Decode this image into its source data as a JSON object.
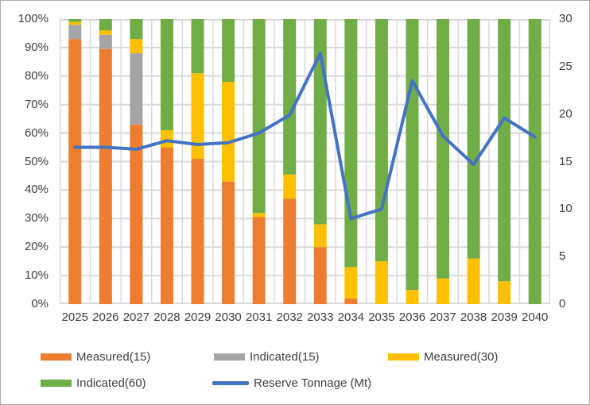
{
  "chart_data": {
    "type": "bar",
    "subtype": "stacked-100-percent-with-line",
    "title": "",
    "categories": [
      "2025",
      "2026",
      "2027",
      "2028",
      "2029",
      "2030",
      "2031",
      "2032",
      "2033",
      "2034",
      "2035",
      "2036",
      "2037",
      "2038",
      "2039",
      "2040"
    ],
    "series": [
      {
        "name": "Measured(15)",
        "type": "bar",
        "color": "#ED7D31",
        "values": [
          93,
          89.5,
          63,
          55,
          51,
          43,
          30.5,
          37,
          20,
          2,
          0,
          0,
          0,
          0,
          0,
          0
        ]
      },
      {
        "name": "Indicated(15)",
        "type": "bar",
        "color": "#A5A5A5",
        "values": [
          5,
          5,
          25,
          0,
          0,
          0,
          0,
          0,
          0,
          0,
          0,
          0,
          0,
          0,
          0,
          0
        ]
      },
      {
        "name": "Measured(30)",
        "type": "bar",
        "color": "#FFC000",
        "values": [
          1,
          1.5,
          5,
          6,
          30,
          35,
          1.5,
          8.5,
          8,
          11,
          15,
          5,
          9,
          16,
          8,
          0
        ]
      },
      {
        "name": "Indicated(60)",
        "type": "bar",
        "color": "#70AD47",
        "values": [
          1,
          4,
          7,
          39,
          19,
          22,
          68,
          54.5,
          72,
          87,
          85,
          95,
          91,
          84,
          92,
          100
        ]
      },
      {
        "name": "Reserve Tonnage (Mt)",
        "type": "line",
        "axis": "right",
        "color": "#4472C4",
        "values": [
          16.5,
          16.5,
          16.3,
          17.2,
          16.8,
          17.0,
          18.0,
          19.9,
          26.4,
          9.0,
          10.0,
          23.5,
          17.7,
          14.7,
          19.6,
          17.6
        ]
      }
    ],
    "left_axis": {
      "min": 0,
      "max": 100,
      "tick_step": 10,
      "tick_labels": [
        "0%",
        "10%",
        "20%",
        "30%",
        "40%",
        "50%",
        "60%",
        "70%",
        "80%",
        "90%",
        "100%"
      ]
    },
    "right_axis": {
      "min": 0,
      "max": 30,
      "tick_step": 5,
      "tick_labels": [
        "0",
        "5",
        "10",
        "15",
        "20",
        "25",
        "30"
      ]
    },
    "grid": {
      "horizontal": true,
      "vertical": true,
      "color": "#D9D9D9"
    },
    "legend_position": "bottom-left"
  },
  "legend": {
    "rows": [
      [
        {
          "label": "Measured(15)",
          "swatch": "bar",
          "color": "#ED7D31"
        },
        {
          "label": "Indicated(15)",
          "swatch": "bar",
          "color": "#A5A5A5"
        },
        {
          "label": "Measured(30)",
          "swatch": "bar",
          "color": "#FFC000"
        }
      ],
      [
        {
          "label": "Indicated(60)",
          "swatch": "bar",
          "color": "#70AD47"
        },
        {
          "label": "Reserve Tonnage (Mt)",
          "swatch": "line",
          "color": "#4472C4"
        }
      ]
    ]
  },
  "colors": {
    "text": "#404040",
    "gridline": "#D9D9D9",
    "border": "#ABABAB",
    "background": "#FFFFFF"
  }
}
